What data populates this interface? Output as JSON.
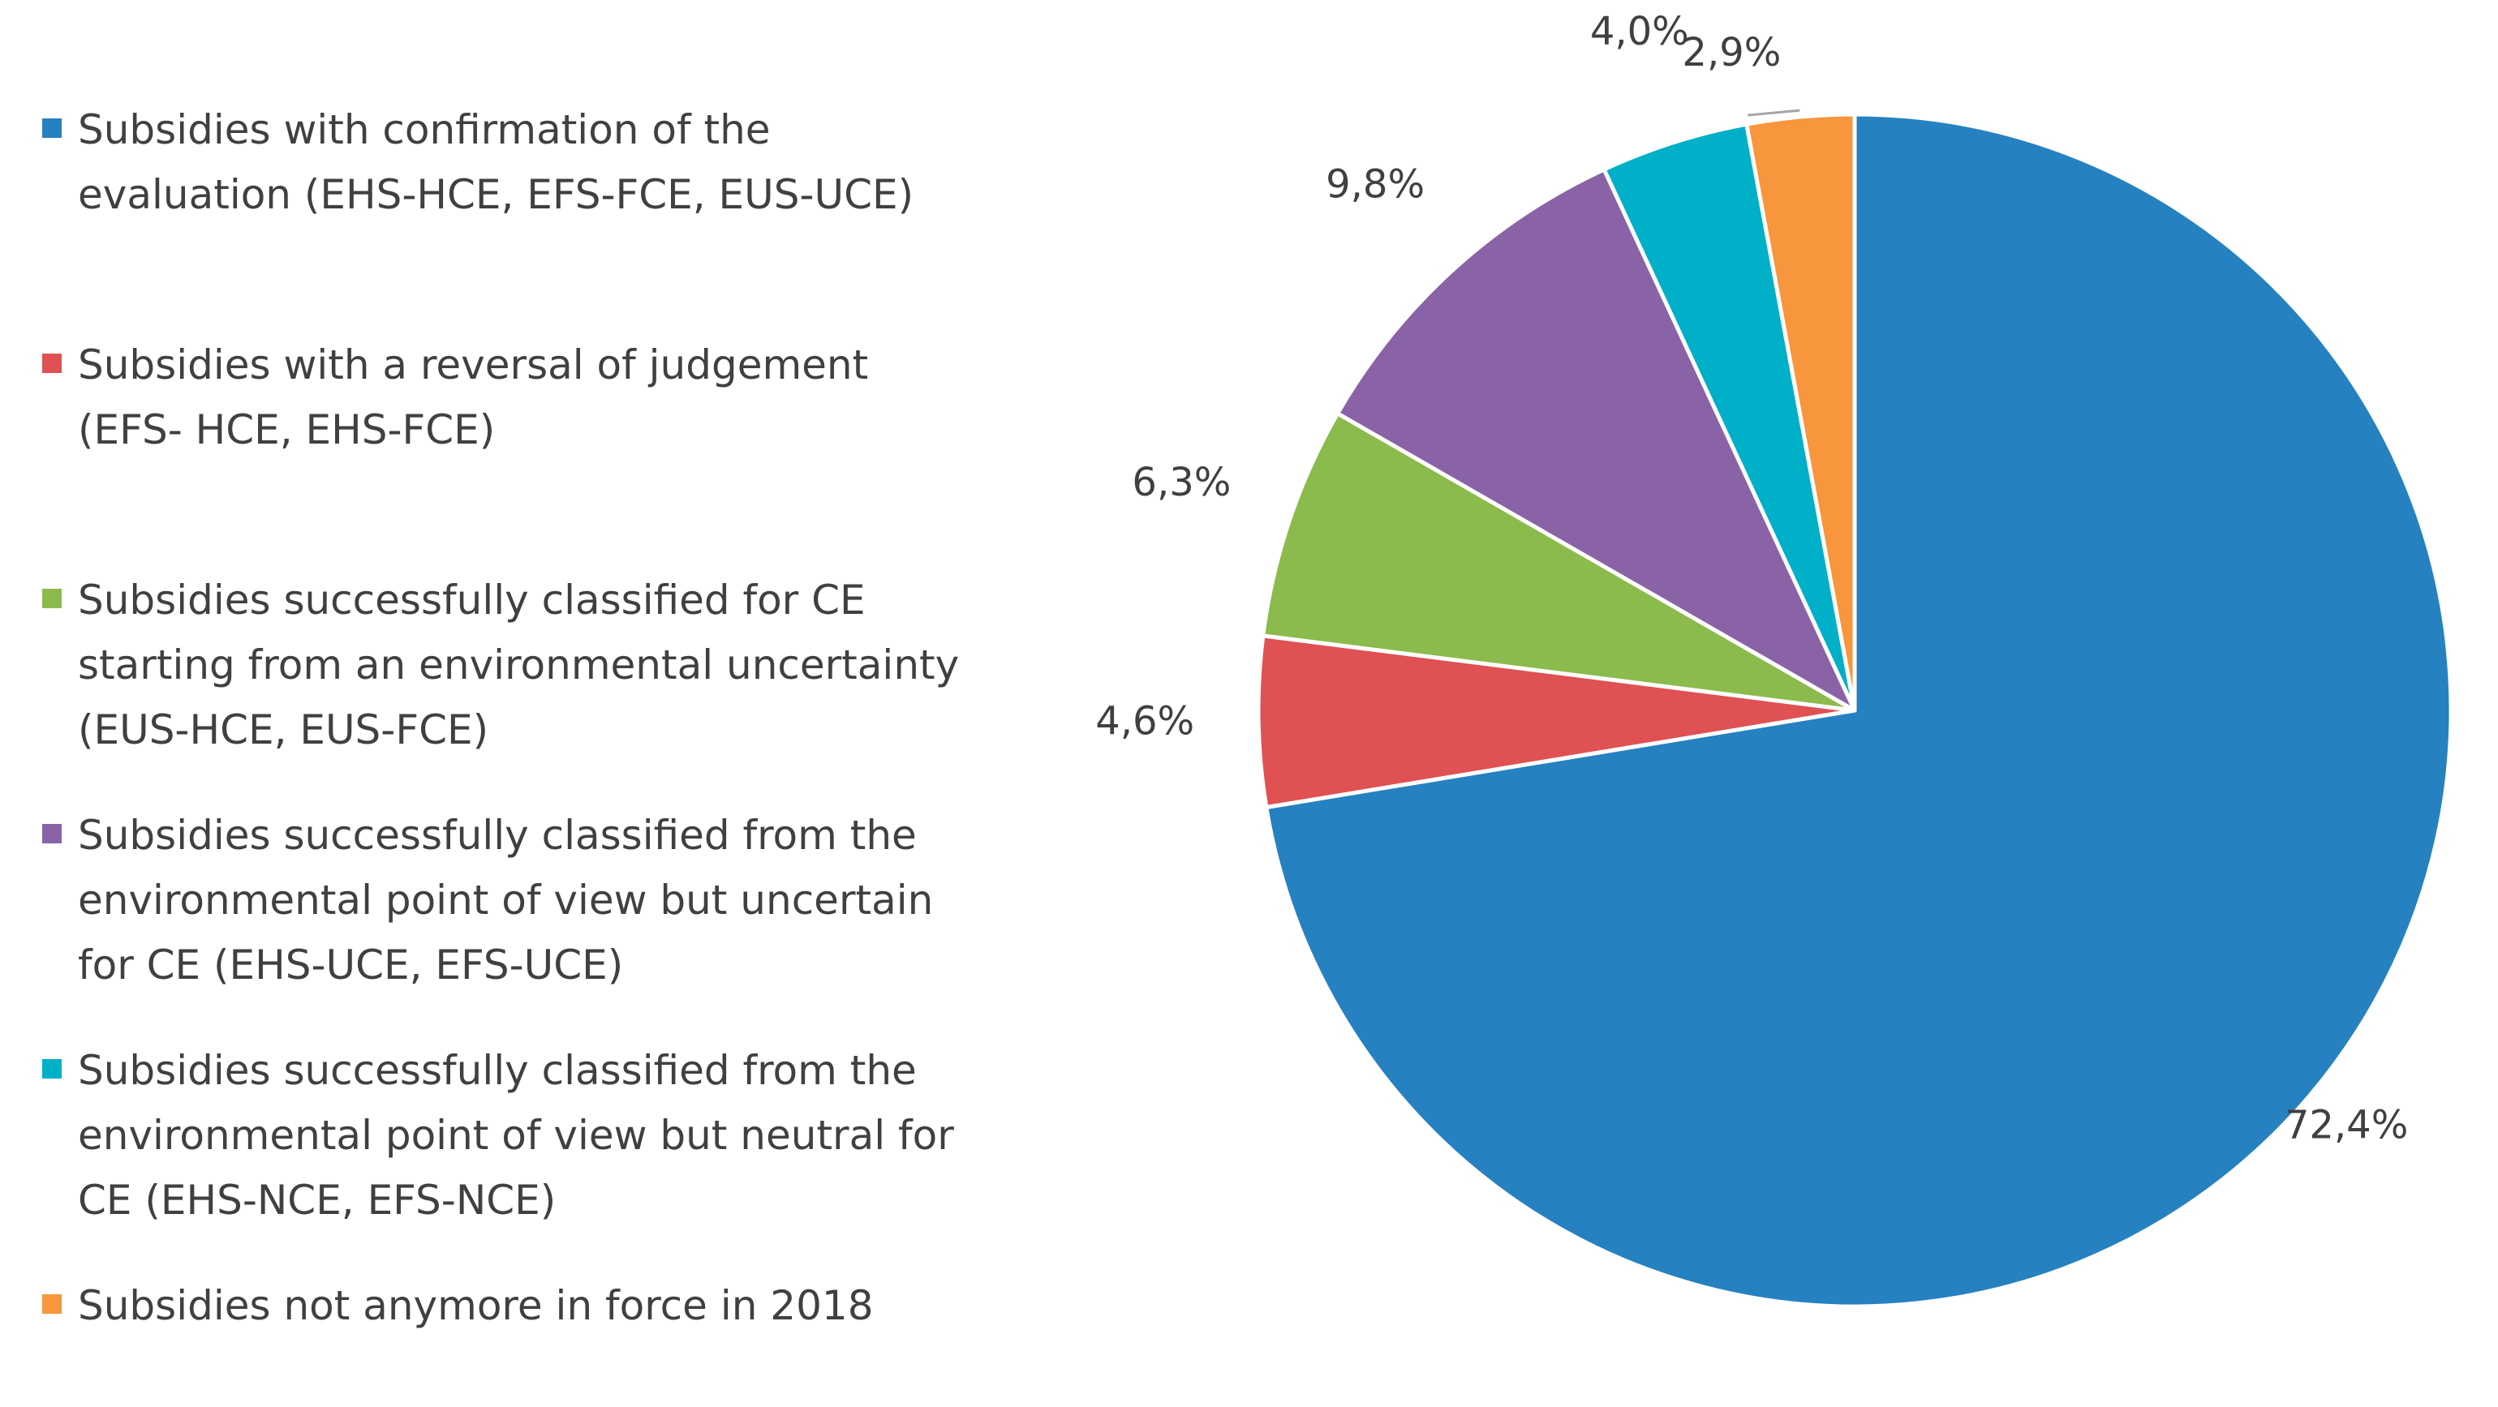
{
  "chart_data": {
    "type": "pie",
    "start_angle": "12 o'clock, clockwise",
    "legend_position": "left",
    "slices": [
      {
        "label": "Subsidies with confirmation of the evaluation (EHS-HCE, EFS-FCE, EUS-UCE)",
        "value": 72.4,
        "display": "72,4%",
        "color": "#2681C0"
      },
      {
        "label": "Subsidies with a reversal of judgement (EFS- HCE, EHS-FCE)",
        "value": 4.6,
        "display": "4,6%",
        "color": "#DF5152"
      },
      {
        "label": "Subsidies successfully classified for CE starting from an environmental uncertainty (EUS-HCE, EUS-FCE)",
        "value": 6.3,
        "display": "6,3%",
        "color": "#8CBB4D"
      },
      {
        "label": "Subsidies successfully classified from the environmental point of view but uncertain for CE (EHS-UCE, EFS-UCE)",
        "value": 9.8,
        "display": "9,8%",
        "color": "#8A63A6"
      },
      {
        "label": "Subsidies successfully classified from the environmental point of view but neutral for CE (EHS-NCE, EFS-NCE)",
        "value": 4.0,
        "display": "4,0%",
        "color": "#00AFC8"
      },
      {
        "label": "Subsidies not anymore in force in 2018",
        "value": 2.9,
        "display": "2,9%",
        "color": "#F7963D"
      }
    ]
  },
  "legend": {
    "items": [
      {
        "text": "Subsidies with confirmation of the evaluation (EHS-HCE, EFS-FCE, EUS-UCE)",
        "color": "#2681C0"
      },
      {
        "text": "Subsidies with a reversal of judgement (EFS- HCE, EHS-FCE)",
        "color": "#DF5152"
      },
      {
        "text": "Subsidies successfully classified for CE starting from an environmental uncertainty (EUS-HCE, EUS-FCE)",
        "color": "#8CBB4D"
      },
      {
        "text": "Subsidies successfully classified from the environmental point of view but uncertain for CE (EHS-UCE, EFS-UCE)",
        "color": "#8A63A6"
      },
      {
        "text": "Subsidies successfully classified from the environmental point of view but neutral for CE (EHS-NCE, EFS-NCE)",
        "color": "#00AFC8"
      },
      {
        "text": "Subsidies not anymore in force in 2018",
        "color": "#F7963D"
      }
    ]
  }
}
